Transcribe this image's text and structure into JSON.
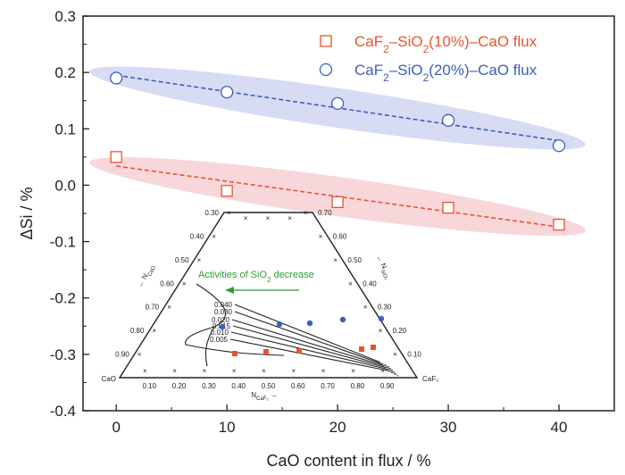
{
  "chart_data": {
    "type": "scatter",
    "title": "",
    "xlabel": "CaO content in flux / %",
    "ylabel": "ΔSi / %",
    "xlim": [
      -3,
      45
    ],
    "ylim": [
      -0.4,
      0.3
    ],
    "x_ticks": [
      "0",
      "10",
      "20",
      "30",
      "40"
    ],
    "y_ticks": [
      "0.3",
      "0.2",
      "0.1",
      "0.0",
      "-0.1",
      "-0.2",
      "-0.3",
      "-0.4"
    ],
    "grid": false,
    "legend_position": "top-right",
    "series": [
      {
        "name": "CaF2–SiO2(10%)–CaO flux",
        "name_parts": [
          "CaF",
          "2",
          "–SiO",
          "2",
          "(10%)–CaO flux"
        ],
        "marker": "square",
        "color": "#e8532e",
        "band_color": "#f6c9cf",
        "x": [
          0,
          10,
          20,
          30,
          40
        ],
        "y": [
          0.05,
          -0.01,
          -0.03,
          -0.04,
          -0.07
        ]
      },
      {
        "name": "CaF2–SiO2(20%)–CaO flux",
        "name_parts": [
          "CaF",
          "2",
          "–SiO",
          "2",
          "(20%)–CaO flux"
        ],
        "marker": "circle",
        "color": "#3e5eb8",
        "band_color": "#c9cff0",
        "x": [
          0,
          10,
          20,
          30,
          40
        ],
        "y": [
          0.19,
          0.165,
          0.145,
          0.115,
          0.07
        ]
      }
    ],
    "inset": {
      "corner_labels": {
        "left": "CaO",
        "right": "CaF₂"
      },
      "bottom_axis_label": "N",
      "bottom_axis_sub": "CaF₂",
      "bottom_axis_arrow": "→",
      "left_axis_label": "N",
      "left_axis_sub": "CaO",
      "right_axis_label": "N",
      "right_axis_sub": "SiO₂",
      "bottom_ticks": [
        "0.10",
        "0.20",
        "0.30",
        "0.40",
        "0.50",
        "0.60",
        "0.70",
        "0.80",
        "0.90"
      ],
      "left_ticks": [
        "0.90",
        "0.80",
        "0.70",
        "0.60",
        "0.50",
        "0.40",
        "0.30"
      ],
      "right_ticks": [
        "0.10",
        "0.20",
        "0.30",
        "0.40",
        "0.50",
        "0.60",
        "0.70"
      ],
      "isoactivity_labels": [
        "0.040",
        "0.030",
        "0.020",
        "0.015",
        "0.010",
        "0.005"
      ],
      "annotation_prefix": "Activities of SiO",
      "annotation_sub": "2",
      "annotation_suffix": " decrease",
      "annotation_color": "#2e9d2e"
    }
  }
}
